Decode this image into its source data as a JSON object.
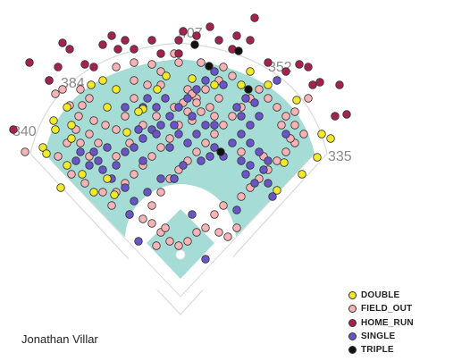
{
  "chart_data": {
    "type": "scatter",
    "title": "",
    "player": "Jonathan Villar",
    "field": "spray-chart",
    "distance_labels": {
      "left_line": "340",
      "left_center": "384",
      "center": "407",
      "right_center": "352",
      "right_line": "335"
    },
    "legend_position": "bottom-right",
    "series": [
      {
        "name": "DOUBLE",
        "color": "#f2ea28",
        "points": [
          [
            48,
            165
          ],
          [
            62,
            145
          ],
          [
            80,
            155
          ],
          [
            52,
            172
          ],
          [
            75,
            185
          ],
          [
            92,
            195
          ],
          [
            68,
            210
          ],
          [
            105,
            215
          ],
          [
            120,
            200
          ],
          [
            128,
            218
          ],
          [
            102,
            95
          ],
          [
            130,
            100
          ],
          [
            160,
            122
          ],
          [
            176,
            100
          ],
          [
            155,
            125
          ],
          [
            186,
            85
          ],
          [
            215,
            88
          ],
          [
            240,
            95
          ],
          [
            280,
            80
          ],
          [
            300,
            95
          ],
          [
            332,
            112
          ],
          [
            270,
            95
          ],
          [
            318,
            182
          ],
          [
            310,
            213
          ],
          [
            338,
            195
          ],
          [
            355,
            176
          ],
          [
            360,
            150
          ],
          [
            370,
            155
          ],
          [
            142,
            148
          ],
          [
            80,
            140
          ],
          [
            75,
            120
          ],
          [
            60,
            135
          ],
          [
            115,
            90
          ],
          [
            120,
            120
          ]
        ]
      },
      {
        "name": "FIELD_OUT",
        "color": "#f7b4b6",
        "points": [
          [
            28,
            170
          ],
          [
            55,
            90
          ],
          [
            90,
            100
          ],
          [
            100,
            110
          ],
          [
            88,
            130
          ],
          [
            105,
            135
          ],
          [
            118,
            140
          ],
          [
            130,
            145
          ],
          [
            140,
            130
          ],
          [
            150,
            110
          ],
          [
            165,
            95
          ],
          [
            180,
            80
          ],
          [
            200,
            70
          ],
          [
            225,
            70
          ],
          [
            250,
            75
          ],
          [
            260,
            85
          ],
          [
            245,
            90
          ],
          [
            230,
            100
          ],
          [
            220,
            110
          ],
          [
            210,
            125
          ],
          [
            200,
            140
          ],
          [
            190,
            155
          ],
          [
            180,
            165
          ],
          [
            170,
            175
          ],
          [
            160,
            185
          ],
          [
            150,
            195
          ],
          [
            140,
            205
          ],
          [
            130,
            215
          ],
          [
            100,
            175
          ],
          [
            90,
            160
          ],
          [
            85,
            145
          ],
          [
            75,
            160
          ],
          [
            65,
            175
          ],
          [
            80,
            195
          ],
          [
            95,
            205
          ],
          [
            115,
            215
          ],
          [
            125,
            230
          ],
          [
            145,
            240
          ],
          [
            160,
            245
          ],
          [
            170,
            230
          ],
          [
            180,
            215
          ],
          [
            190,
            200
          ],
          [
            200,
            190
          ],
          [
            210,
            180
          ],
          [
            220,
            170
          ],
          [
            230,
            160
          ],
          [
            240,
            150
          ],
          [
            250,
            140
          ],
          [
            260,
            130
          ],
          [
            270,
            120
          ],
          [
            280,
            110
          ],
          [
            290,
            100
          ],
          [
            300,
            110
          ],
          [
            310,
            120
          ],
          [
            320,
            130
          ],
          [
            330,
            140
          ],
          [
            340,
            150
          ],
          [
            330,
            160
          ],
          [
            320,
            170
          ],
          [
            310,
            180
          ],
          [
            300,
            190
          ],
          [
            290,
            200
          ],
          [
            280,
            210
          ],
          [
            270,
            220
          ],
          [
            250,
            230
          ],
          [
            240,
            240
          ],
          [
            230,
            255
          ],
          [
            220,
            260
          ],
          [
            210,
            270
          ],
          [
            200,
            275
          ],
          [
            190,
            270
          ],
          [
            180,
            260
          ],
          [
            170,
            250
          ],
          [
            245,
            260
          ],
          [
            255,
            265
          ],
          [
            265,
            255
          ],
          [
            175,
            275
          ],
          [
            185,
            255
          ],
          [
            315,
            140
          ],
          [
            325,
            155
          ],
          [
            295,
            175
          ],
          [
            270,
            170
          ],
          [
            240,
            130
          ],
          [
            215,
            135
          ],
          [
            195,
            120
          ],
          [
            175,
            130
          ],
          [
            160,
            140
          ],
          [
            145,
            160
          ],
          [
            130,
            175
          ],
          [
            110,
            160
          ],
          [
            100,
            150
          ],
          [
            70,
            100
          ],
          [
            62,
            105
          ],
          [
            78,
            118
          ],
          [
            92,
            118
          ],
          [
            150,
            70
          ],
          [
            170,
            72
          ],
          [
            195,
            60
          ],
          [
            210,
            100
          ],
          [
            215,
            105
          ],
          [
            220,
            115
          ],
          [
            205,
            115
          ],
          [
            225,
            125
          ],
          [
            235,
            120
          ],
          [
            330,
            125
          ],
          [
            345,
            110
          ],
          [
            150,
            90
          ],
          [
            130,
            75
          ],
          [
            245,
            110
          ],
          [
            180,
            95
          ]
        ]
      },
      {
        "name": "HOME_RUN",
        "color": "#a52150",
        "points": [
          [
            33,
            70
          ],
          [
            55,
            90
          ],
          [
            65,
            75
          ],
          [
            70,
            48
          ],
          [
            78,
            55
          ],
          [
            95,
            72
          ],
          [
            105,
            75
          ],
          [
            115,
            50
          ],
          [
            125,
            40
          ],
          [
            132,
            55
          ],
          [
            140,
            45
          ],
          [
            150,
            55
          ],
          [
            180,
            60
          ],
          [
            200,
            45
          ],
          [
            205,
            35
          ],
          [
            220,
            40
          ],
          [
            235,
            30
          ],
          [
            245,
            45
          ],
          [
            265,
            40
          ],
          [
            280,
            45
          ],
          [
            285,
            20
          ],
          [
            300,
            70
          ],
          [
            320,
            80
          ],
          [
            335,
            72
          ],
          [
            345,
            75
          ],
          [
            350,
            95
          ],
          [
            358,
            92
          ],
          [
            375,
            130
          ],
          [
            380,
            95
          ],
          [
            388,
            128
          ],
          [
            15,
            145
          ],
          [
            170,
            45
          ],
          [
            260,
            55
          ],
          [
            200,
            60
          ]
        ]
      },
      {
        "name": "SINGLE",
        "color": "#6a55c8",
        "points": [
          [
            90,
            170
          ],
          [
            100,
            185
          ],
          [
            110,
            180
          ],
          [
            120,
            165
          ],
          [
            130,
            185
          ],
          [
            140,
            170
          ],
          [
            150,
            165
          ],
          [
            160,
            155
          ],
          [
            170,
            145
          ],
          [
            180,
            140
          ],
          [
            190,
            130
          ],
          [
            200,
            120
          ],
          [
            210,
            110
          ],
          [
            220,
            100
          ],
          [
            230,
            90
          ],
          [
            240,
            80
          ],
          [
            250,
            95
          ],
          [
            200,
            150
          ],
          [
            210,
            160
          ],
          [
            220,
            150
          ],
          [
            230,
            140
          ],
          [
            240,
            165
          ],
          [
            250,
            175
          ],
          [
            260,
            160
          ],
          [
            270,
            150
          ],
          [
            280,
            140
          ],
          [
            290,
            130
          ],
          [
            270,
            130
          ],
          [
            280,
            160
          ],
          [
            290,
            170
          ],
          [
            300,
            180
          ],
          [
            275,
            195
          ],
          [
            285,
            205
          ],
          [
            300,
            205
          ],
          [
            305,
            220
          ],
          [
            295,
            190
          ],
          [
            320,
            150
          ],
          [
            140,
            210
          ],
          [
            150,
            225
          ],
          [
            165,
            215
          ],
          [
            180,
            200
          ],
          [
            195,
            200
          ],
          [
            205,
            185
          ],
          [
            225,
            180
          ],
          [
            235,
            175
          ],
          [
            215,
            240
          ],
          [
            195,
            200
          ],
          [
            125,
            200
          ],
          [
            115,
            190
          ],
          [
            105,
            170
          ],
          [
            85,
            180
          ],
          [
            160,
            180
          ],
          [
            175,
            150
          ],
          [
            190,
            165
          ],
          [
            155,
            145
          ],
          [
            140,
            120
          ],
          [
            165,
            110
          ],
          [
            175,
            120
          ],
          [
            185,
            110
          ],
          [
            145,
            240
          ],
          [
            265,
            235
          ],
          [
            230,
            290
          ],
          [
            155,
            270
          ],
          [
            195,
            140
          ],
          [
            160,
            120
          ],
          [
            215,
            130
          ],
          [
            240,
            140
          ],
          [
            265,
            120
          ],
          [
            275,
            110
          ],
          [
            285,
            115
          ],
          [
            310,
            90
          ],
          [
            270,
            180
          ],
          [
            280,
            185
          ]
        ]
      },
      {
        "name": "TRIPLE",
        "color": "#111111",
        "points": [
          [
            218,
            50
          ],
          [
            267,
            57
          ],
          [
            234,
            74
          ],
          [
            278,
            100
          ],
          [
            247,
            170
          ]
        ]
      }
    ]
  }
}
